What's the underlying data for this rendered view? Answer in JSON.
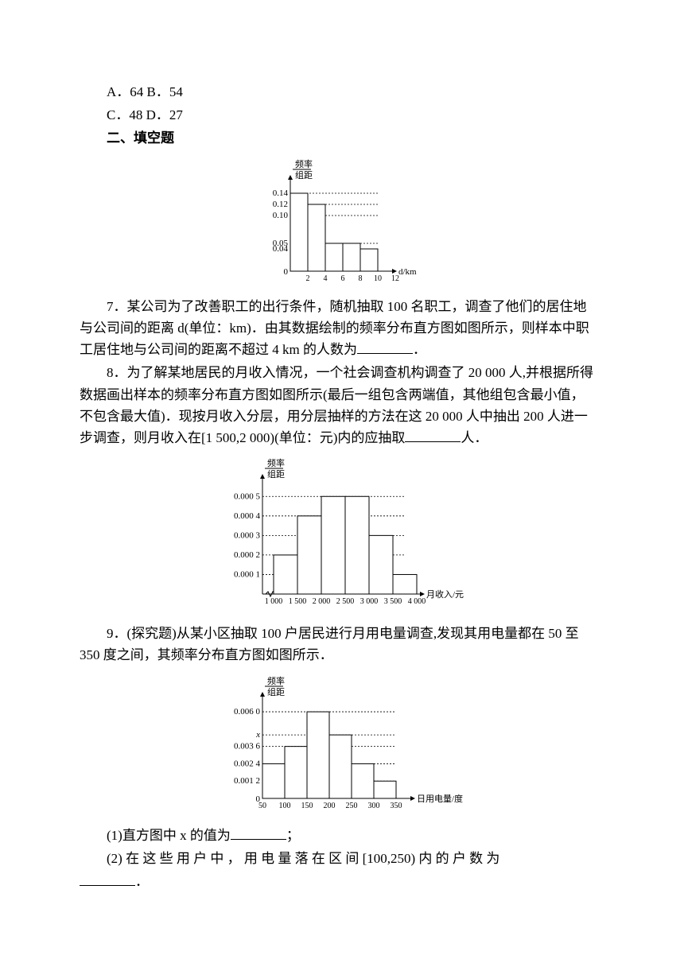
{
  "options": {
    "line1": "A．64   B．54",
    "line2": "C．48   D．27"
  },
  "section_title": "二、填空题",
  "chart1": {
    "ylabel_top": "频率",
    "ylabel_bot": "组距",
    "xlabel": "d/km",
    "yticks": [
      "0.14",
      "0.12",
      "0.10",
      "0.05",
      "0.04"
    ],
    "yzero": "0",
    "xticks": [
      "2",
      "4",
      "6",
      "8",
      "10",
      "12"
    ],
    "bars": [
      0.14,
      0.12,
      0.05,
      0.05,
      0.04
    ],
    "axis_color": "#000000",
    "bar_stroke": "#000000",
    "bar_fill": "#ffffff",
    "grid_dash": "2,2"
  },
  "q7": {
    "text": "7．某公司为了改善职工的出行条件，随机抽取 100 名职工，调查了他们的居住地与公司间的距离 d(单位：km)．由其数据绘制的频率分布直方图如图所示，则样本中职工居住地与公司间的距离不超过 4 km 的人数为",
    "suffix": "．"
  },
  "q8": {
    "text": "8．为了解某地居民的月收入情况，一个社会调查机构调查了 20 000 人,并根据所得数据画出样本的频率分布直方图如图所示(最后一组包含两端值，其他组包含最小值，不包含最大值)．现按月收入分层，用分层抽样的方法在这 20 000 人中抽出 200 人进一步调查，则月收入在[1 500,2 000)(单位：元)内的应抽取",
    "suffix": "人．"
  },
  "chart2": {
    "ylabel_top": "频率",
    "ylabel_bot": "组距",
    "xlabel": "月收入/元",
    "yticks": [
      "0.000 5",
      "0.000 4",
      "0.000 3",
      "0.000 2",
      "0.000 1"
    ],
    "xticks": [
      "1 000",
      "1 500",
      "2 000",
      "2 500",
      "3 000",
      "3 500",
      "4 000"
    ],
    "bars": [
      0.0002,
      0.0004,
      0.0005,
      0.0005,
      0.0003,
      0.0001
    ],
    "axis_color": "#000000",
    "bar_stroke": "#000000",
    "bar_fill": "#ffffff",
    "grid_dash": "2,2"
  },
  "q9": {
    "text": "9．(探究题)从某小区抽取 100 户居民进行月用电量调查,发现其用电量都在 50 至 350 度之间，其频率分布直方图如图所示．"
  },
  "chart3": {
    "ylabel_top": "频率",
    "ylabel_bot": "组距",
    "xlabel": "日用电量/度",
    "yticks": [
      "0.006 0",
      "x",
      "0.003 6",
      "0.002 4",
      "0.001 2"
    ],
    "yzero": "0",
    "xticks": [
      "50",
      "100",
      "150",
      "200",
      "250",
      "300",
      "350"
    ],
    "bars": [
      0.0024,
      0.0036,
      0.006,
      0.0044,
      0.0024,
      0.0012
    ],
    "axis_color": "#000000",
    "bar_stroke": "#000000",
    "bar_fill": "#ffffff",
    "grid_dash": "2,2"
  },
  "q9_sub1": {
    "text": "(1)直方图中 x 的值为",
    "suffix": "；"
  },
  "q9_sub2": {
    "text": "(2) 在 这 些 用 户 中 ， 用 电 量 落 在 区 间 [100,250) 内 的 户 数 为",
    "suffix": "．"
  }
}
